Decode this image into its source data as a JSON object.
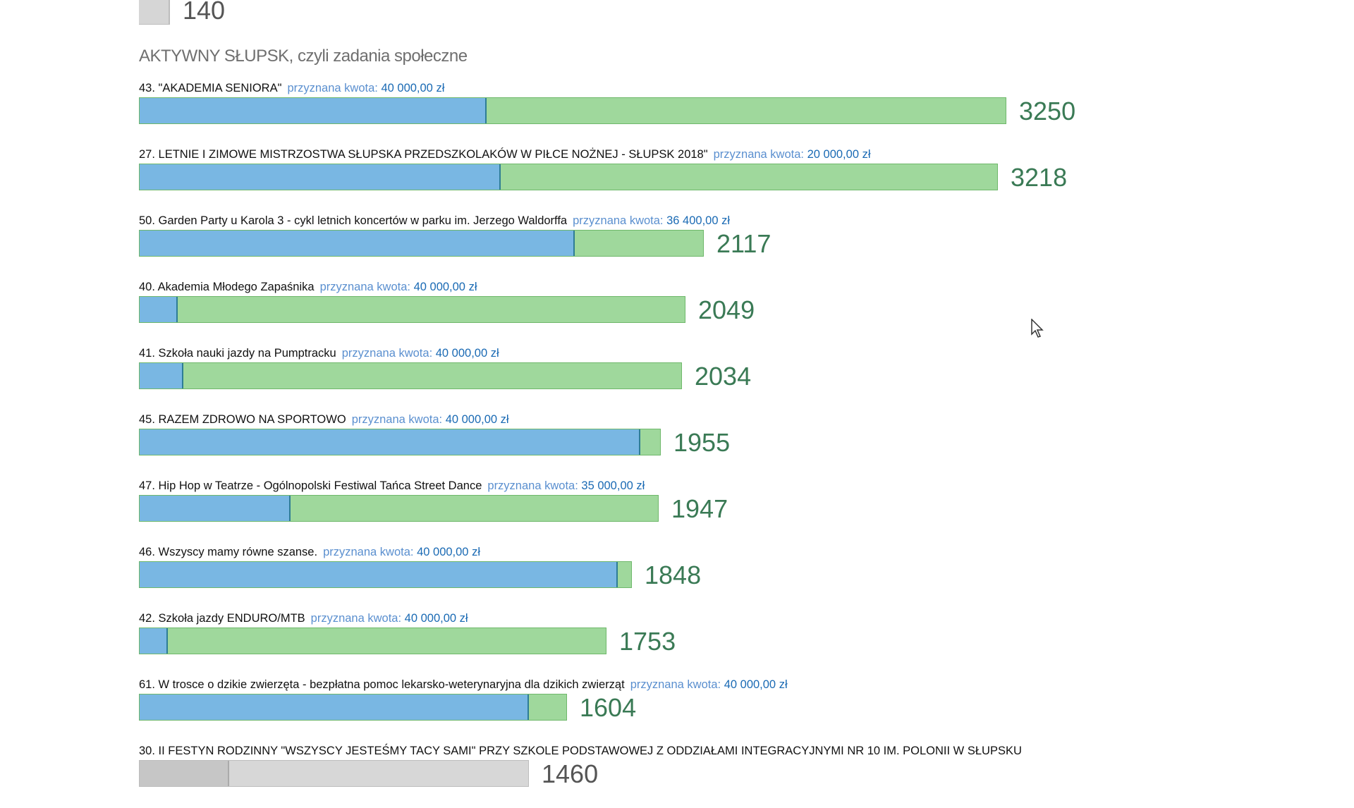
{
  "top": {
    "count": "140"
  },
  "section": {
    "title": "AKTYWNY SŁUPSK, czyli zadania społeczne"
  },
  "amount_label": "przyznana kwota:",
  "projects": [
    {
      "name": "43. \"AKADEMIA SENIORA\"",
      "amount": "40 000,00 zł",
      "votes": "3250",
      "votes_value": 3250,
      "fill_fraction": 0.4
    },
    {
      "name": "27. LETNIE I ZIMOWE MISTRZOSTWA SŁUPSKA PRZEDSZKOLAKÓW W PIŁCE NOŻNEJ - SŁUPSK 2018\"",
      "amount": "20 000,00 zł",
      "votes": "3218",
      "votes_value": 3218,
      "fill_fraction": 0.42
    },
    {
      "name": "50. Garden Party u Karola 3 - cykl letnich koncertów w parku im. Jerzego Waldorffa",
      "amount": "36 400,00 zł",
      "votes": "2117",
      "votes_value": 2117,
      "fill_fraction": 0.77
    },
    {
      "name": "40. Akademia Młodego Zapaśnika",
      "amount": "40 000,00 zł",
      "votes": "2049",
      "votes_value": 2049,
      "fill_fraction": 0.07
    },
    {
      "name": "41. Szkoła nauki jazdy na Pumptracku",
      "amount": "40 000,00 zł",
      "votes": "2034",
      "votes_value": 2034,
      "fill_fraction": 0.08
    },
    {
      "name": "45. RAZEM ZDROWO NA SPORTOWO",
      "amount": "40 000,00 zł",
      "votes": "1955",
      "votes_value": 1955,
      "fill_fraction": 0.96
    },
    {
      "name": "47. Hip Hop w Teatrze - Ogólnopolski Festiwal Tańca Street Dance",
      "amount": "35 000,00 zł",
      "votes": "1947",
      "votes_value": 1947,
      "fill_fraction": 0.29
    },
    {
      "name": "46. Wszyscy mamy równe szanse.",
      "amount": "40 000,00 zł",
      "votes": "1848",
      "votes_value": 1848,
      "fill_fraction": 0.97
    },
    {
      "name": "42. Szkoła jazdy ENDURO/MTB",
      "amount": "40 000,00 zł",
      "votes": "1753",
      "votes_value": 1753,
      "fill_fraction": 0.06
    },
    {
      "name": "61. W trosce o dzikie zwierzęta - bezpłatna pomoc lekarsko-weterynaryjna dla dzikich zwierząt",
      "amount": "40 000,00 zł",
      "votes": "1604",
      "votes_value": 1604,
      "fill_fraction": 0.91
    },
    {
      "name": "30. II FESTYN RODZINNY \"WSZYSCY JESTEŚMY TACY SAMI\" PRZY SZKOLE PODSTAWOWEJ Z ODDZIAŁAMI INTEGRACYJNYMI NR 10 IM. POLONII W SŁUPSKU",
      "amount": "",
      "votes": "1460",
      "votes_value": 1460,
      "fill_fraction": 0.23,
      "greyed": true
    }
  ],
  "colors": {
    "bar_green": "#9fd89c",
    "bar_blue": "#79b7e3",
    "votes_text": "#3a7a55",
    "amount_text": "#1a6ab4"
  }
}
